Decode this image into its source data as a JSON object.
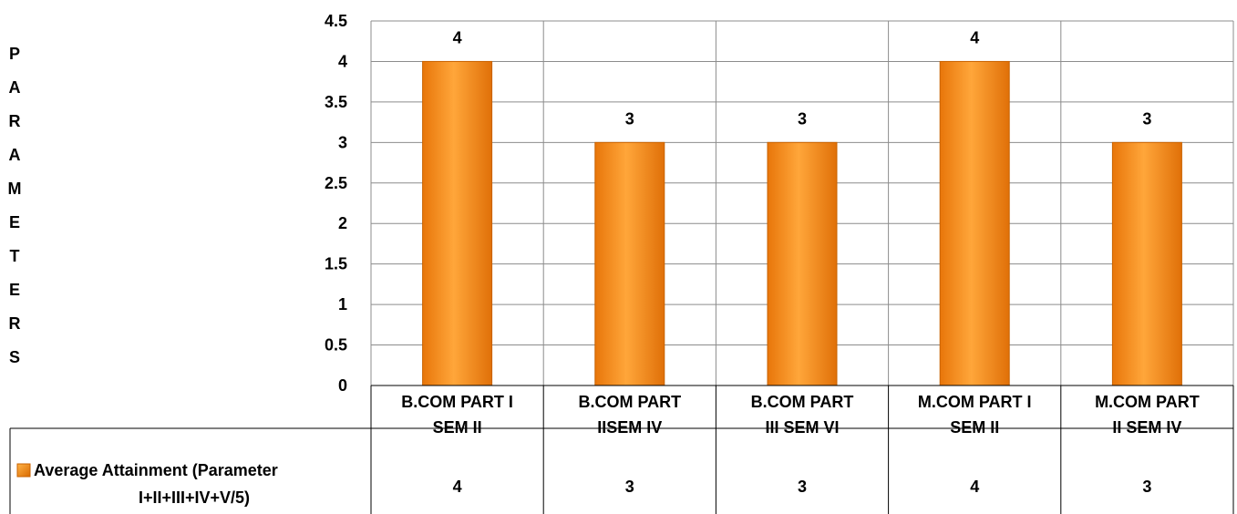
{
  "chart_data": {
    "type": "bar",
    "ylabel": "PARAMETERS",
    "ylim": [
      0,
      4.5
    ],
    "yticks": [
      "0",
      "0.5",
      "1",
      "1.5",
      "2",
      "2.5",
      "3",
      "3.5",
      "4",
      "4.5"
    ],
    "categories": [
      [
        "B.COM PART I",
        "SEM II"
      ],
      [
        "B.COM PART",
        "IISEM IV"
      ],
      [
        "B.COM PART",
        "III SEM VI"
      ],
      [
        "M.COM PART I",
        "SEM II"
      ],
      [
        "M.COM PART",
        "II SEM IV"
      ]
    ],
    "series": [
      {
        "name": [
          "Average Attainment (Parameter",
          "I+II+III+IV+V/5)"
        ],
        "values": [
          4,
          3,
          3,
          4,
          3
        ],
        "color": "#F7931E"
      }
    ],
    "data_labels": [
      "4",
      "3",
      "3",
      "4",
      "3"
    ],
    "grid": true,
    "legend": "data-table"
  }
}
